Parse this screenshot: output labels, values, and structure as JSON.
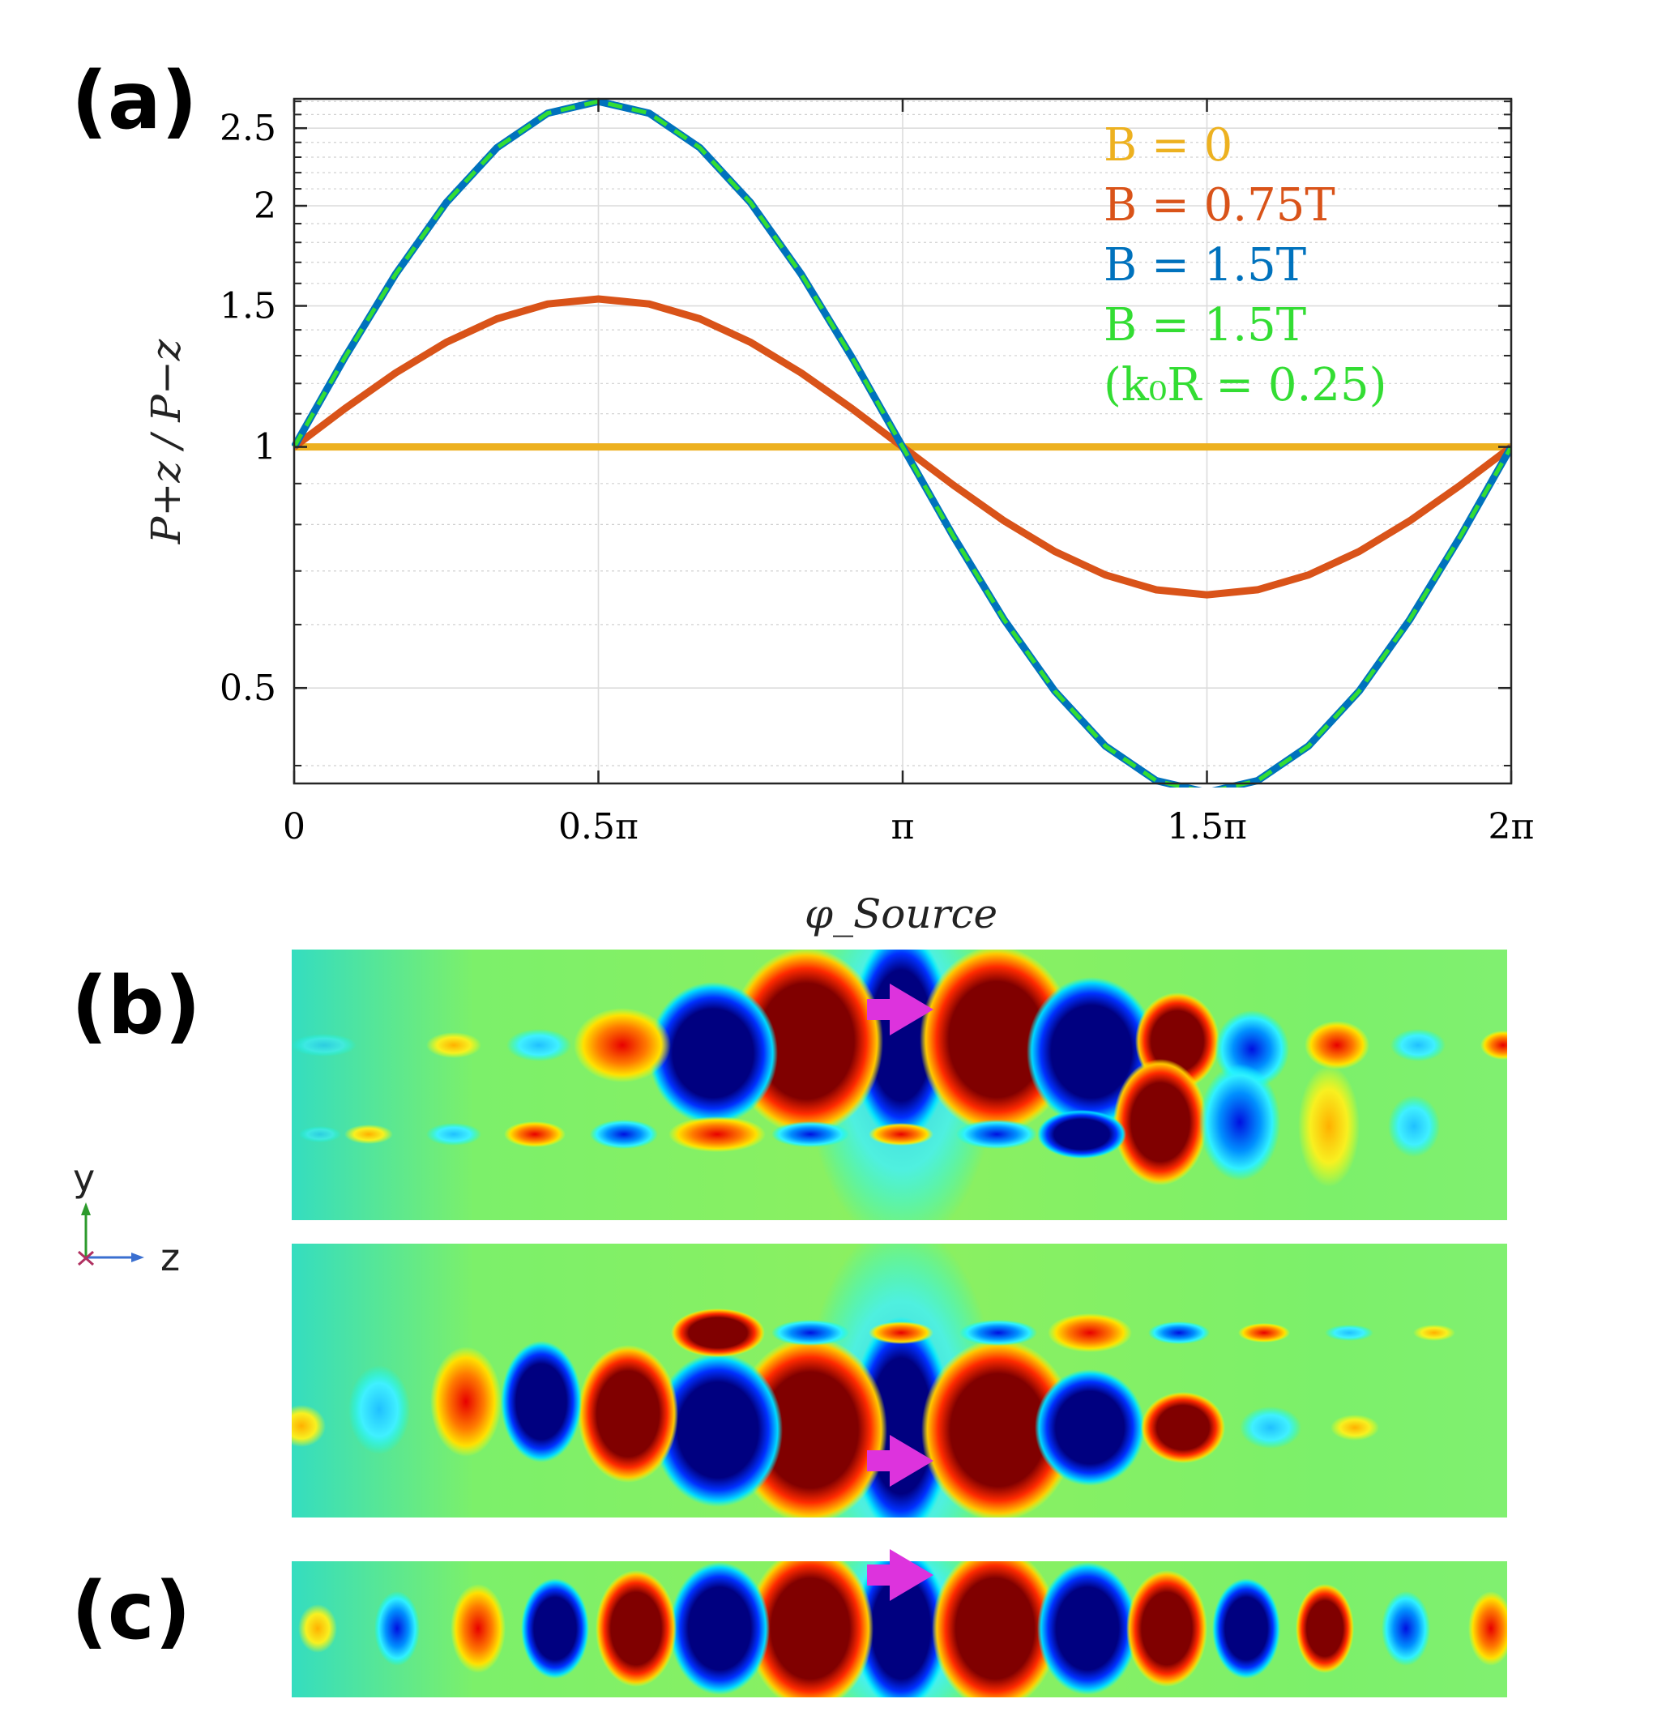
{
  "figure": {
    "panel_labels": [
      "(a)",
      "(b)",
      "(c)"
    ],
    "axes_triad": {
      "y": "y",
      "z": "z"
    }
  },
  "chart_data": {
    "type": "line",
    "yscale": "log",
    "xlabel": "φ_Source",
    "ylabel": "P+z / P−z",
    "xlim": [
      0,
      6.2832
    ],
    "ylim": [
      0.38,
      2.72
    ],
    "x_ticks": [
      {
        "value": 0,
        "label": "0"
      },
      {
        "value": 1.5708,
        "label": "0.5π"
      },
      {
        "value": 3.1416,
        "label": "π"
      },
      {
        "value": 4.7124,
        "label": "1.5π"
      },
      {
        "value": 6.2832,
        "label": "2π"
      }
    ],
    "y_ticks": [
      {
        "value": 0.5,
        "label": "0.5"
      },
      {
        "value": 1,
        "label": "1"
      },
      {
        "value": 1.5,
        "label": "1.5"
      },
      {
        "value": 2,
        "label": "2"
      },
      {
        "value": 2.5,
        "label": "2.5"
      }
    ],
    "grid": true,
    "legend_position": "top-right",
    "series": [
      {
        "name": "B = 0",
        "color": "#EDB120",
        "style": "solid",
        "peak": 1.0
      },
      {
        "name": "B = 0.75T",
        "color": "#D95319",
        "style": "solid",
        "peak": 1.53
      },
      {
        "name": "B = 1.5T",
        "color": "#0072BD",
        "style": "solid",
        "peak": 2.7
      },
      {
        "name": "B = 1.5T",
        "note": "(k₀R = 0.25)",
        "color": "#33DD33",
        "style": "dashed",
        "peak": 2.7
      }
    ],
    "x_samples_over_2pi": 24,
    "model": "y = peak ^ sin(x)"
  }
}
